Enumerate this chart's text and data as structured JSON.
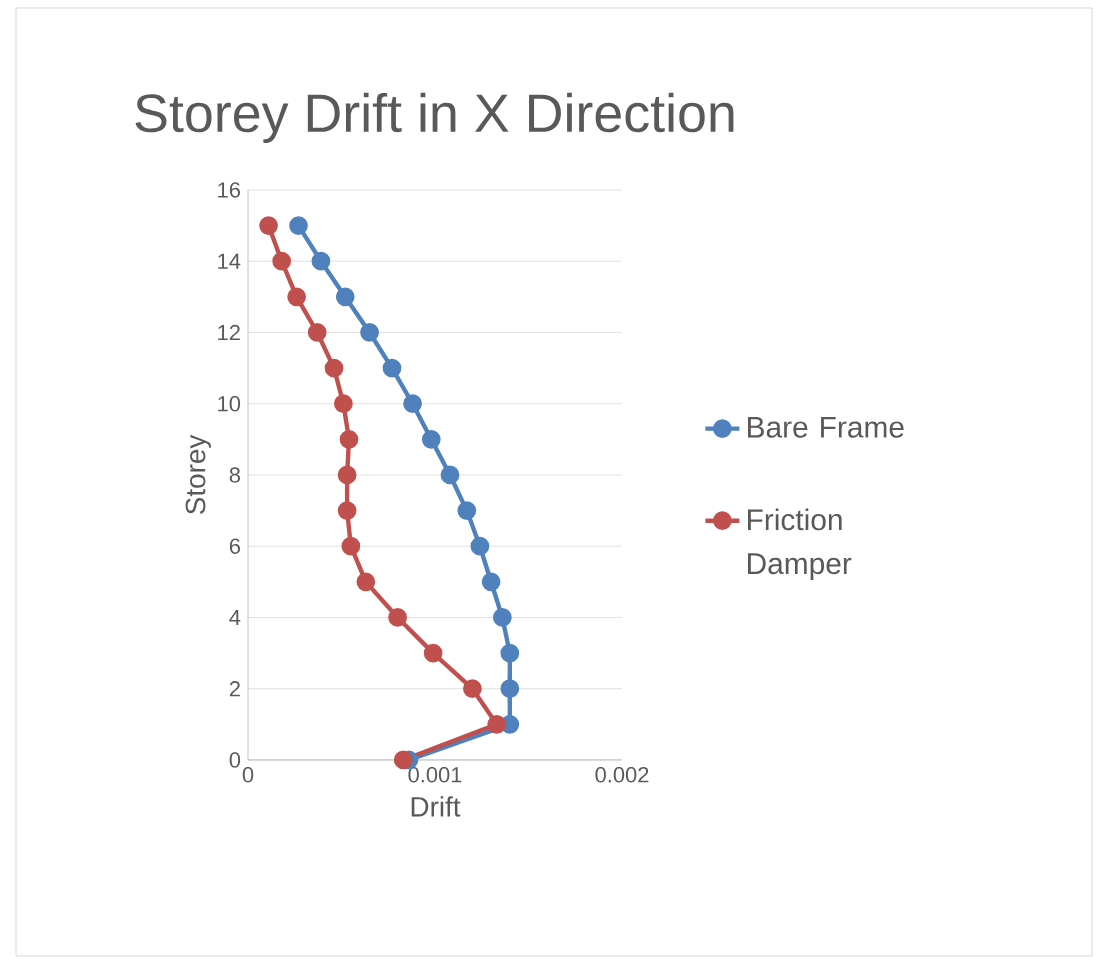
{
  "chart_data": {
    "type": "line",
    "title": "Storey Drift in X Direction",
    "xlabel": "Drift",
    "ylabel": "Storey",
    "xlim": [
      0,
      0.002
    ],
    "xticks": [
      0,
      0.001,
      0.002
    ],
    "ylim": [
      0,
      16
    ],
    "yticks": [
      0,
      2,
      4,
      6,
      8,
      10,
      12,
      14,
      16
    ],
    "grid": "y",
    "legend": "right",
    "marker": "circle",
    "line_style": "solid",
    "series": [
      {
        "name": "Bare Frame",
        "color": "#4f81bd",
        "x": [
          0.00086,
          0.0014,
          0.0014,
          0.0014,
          0.00136,
          0.0013,
          0.00124,
          0.00117,
          0.00108,
          0.00098,
          0.00088,
          0.00077,
          0.00065,
          0.00052,
          0.00039,
          0.00027
        ],
        "values": [
          0,
          1,
          2,
          3,
          4,
          5,
          6,
          7,
          8,
          9,
          10,
          11,
          12,
          13,
          14,
          15
        ]
      },
      {
        "name": "Friction Damper",
        "color": "#c0504d",
        "x": [
          0.00083,
          0.00133,
          0.0012,
          0.00099,
          0.0008,
          0.00063,
          0.00055,
          0.00053,
          0.00053,
          0.00054,
          0.00051,
          0.00046,
          0.00037,
          0.00026,
          0.00018,
          0.00011
        ],
        "values": [
          0,
          1,
          2,
          3,
          4,
          5,
          6,
          7,
          8,
          9,
          10,
          11,
          12,
          13,
          14,
          15
        ]
      }
    ]
  }
}
